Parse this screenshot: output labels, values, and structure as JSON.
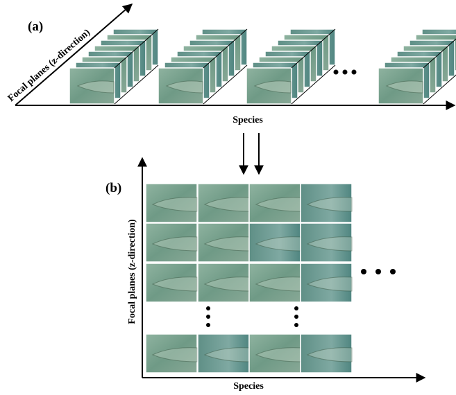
{
  "panel_a": {
    "label": "(a)",
    "y_axis_label": "Focal planes (z-direction)",
    "x_axis_label": "Species"
  },
  "panel_b": {
    "label": "(b)",
    "y_axis_label": "Focal planes (z-direction)",
    "x_axis_label": "Species"
  }
}
